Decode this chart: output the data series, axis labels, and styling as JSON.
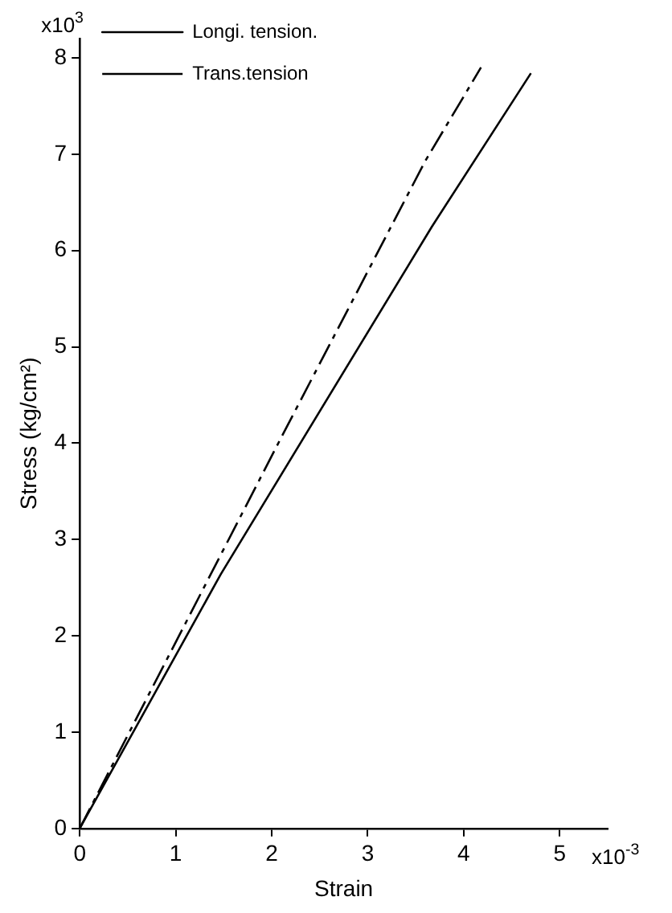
{
  "chart_data": {
    "type": "line",
    "xlabel": "Strain",
    "ylabel": "Stress (kg/cm²)",
    "annotations": [
      "x10$^{3}$",
      "x10$^{-3}$"
    ],
    "xlim": [
      0,
      5.5
    ],
    "xticks": [
      0,
      1,
      2,
      3,
      4,
      5
    ],
    "ylim": [
      0,
      8.2
    ],
    "yticks": [
      0,
      1,
      2,
      3,
      4,
      5,
      6,
      7,
      8
    ],
    "grid": false,
    "legend": "top left",
    "marker": "none",
    "series": [
      {
        "name": "Longi. tension.",
        "color": "#000000",
        "line_style": "solid",
        "x": [
          0,
          1.47,
          3.67,
          4.7
        ],
        "values": [
          0,
          2.64,
          6.25,
          7.84
        ]
      },
      {
        "name": "Trans.tension",
        "color": "#000000",
        "line_style": "dashed",
        "x": [
          0,
          2.1,
          3.6,
          4.18
        ],
        "values": [
          0,
          4.06,
          6.93,
          7.9
        ]
      }
    ]
  }
}
